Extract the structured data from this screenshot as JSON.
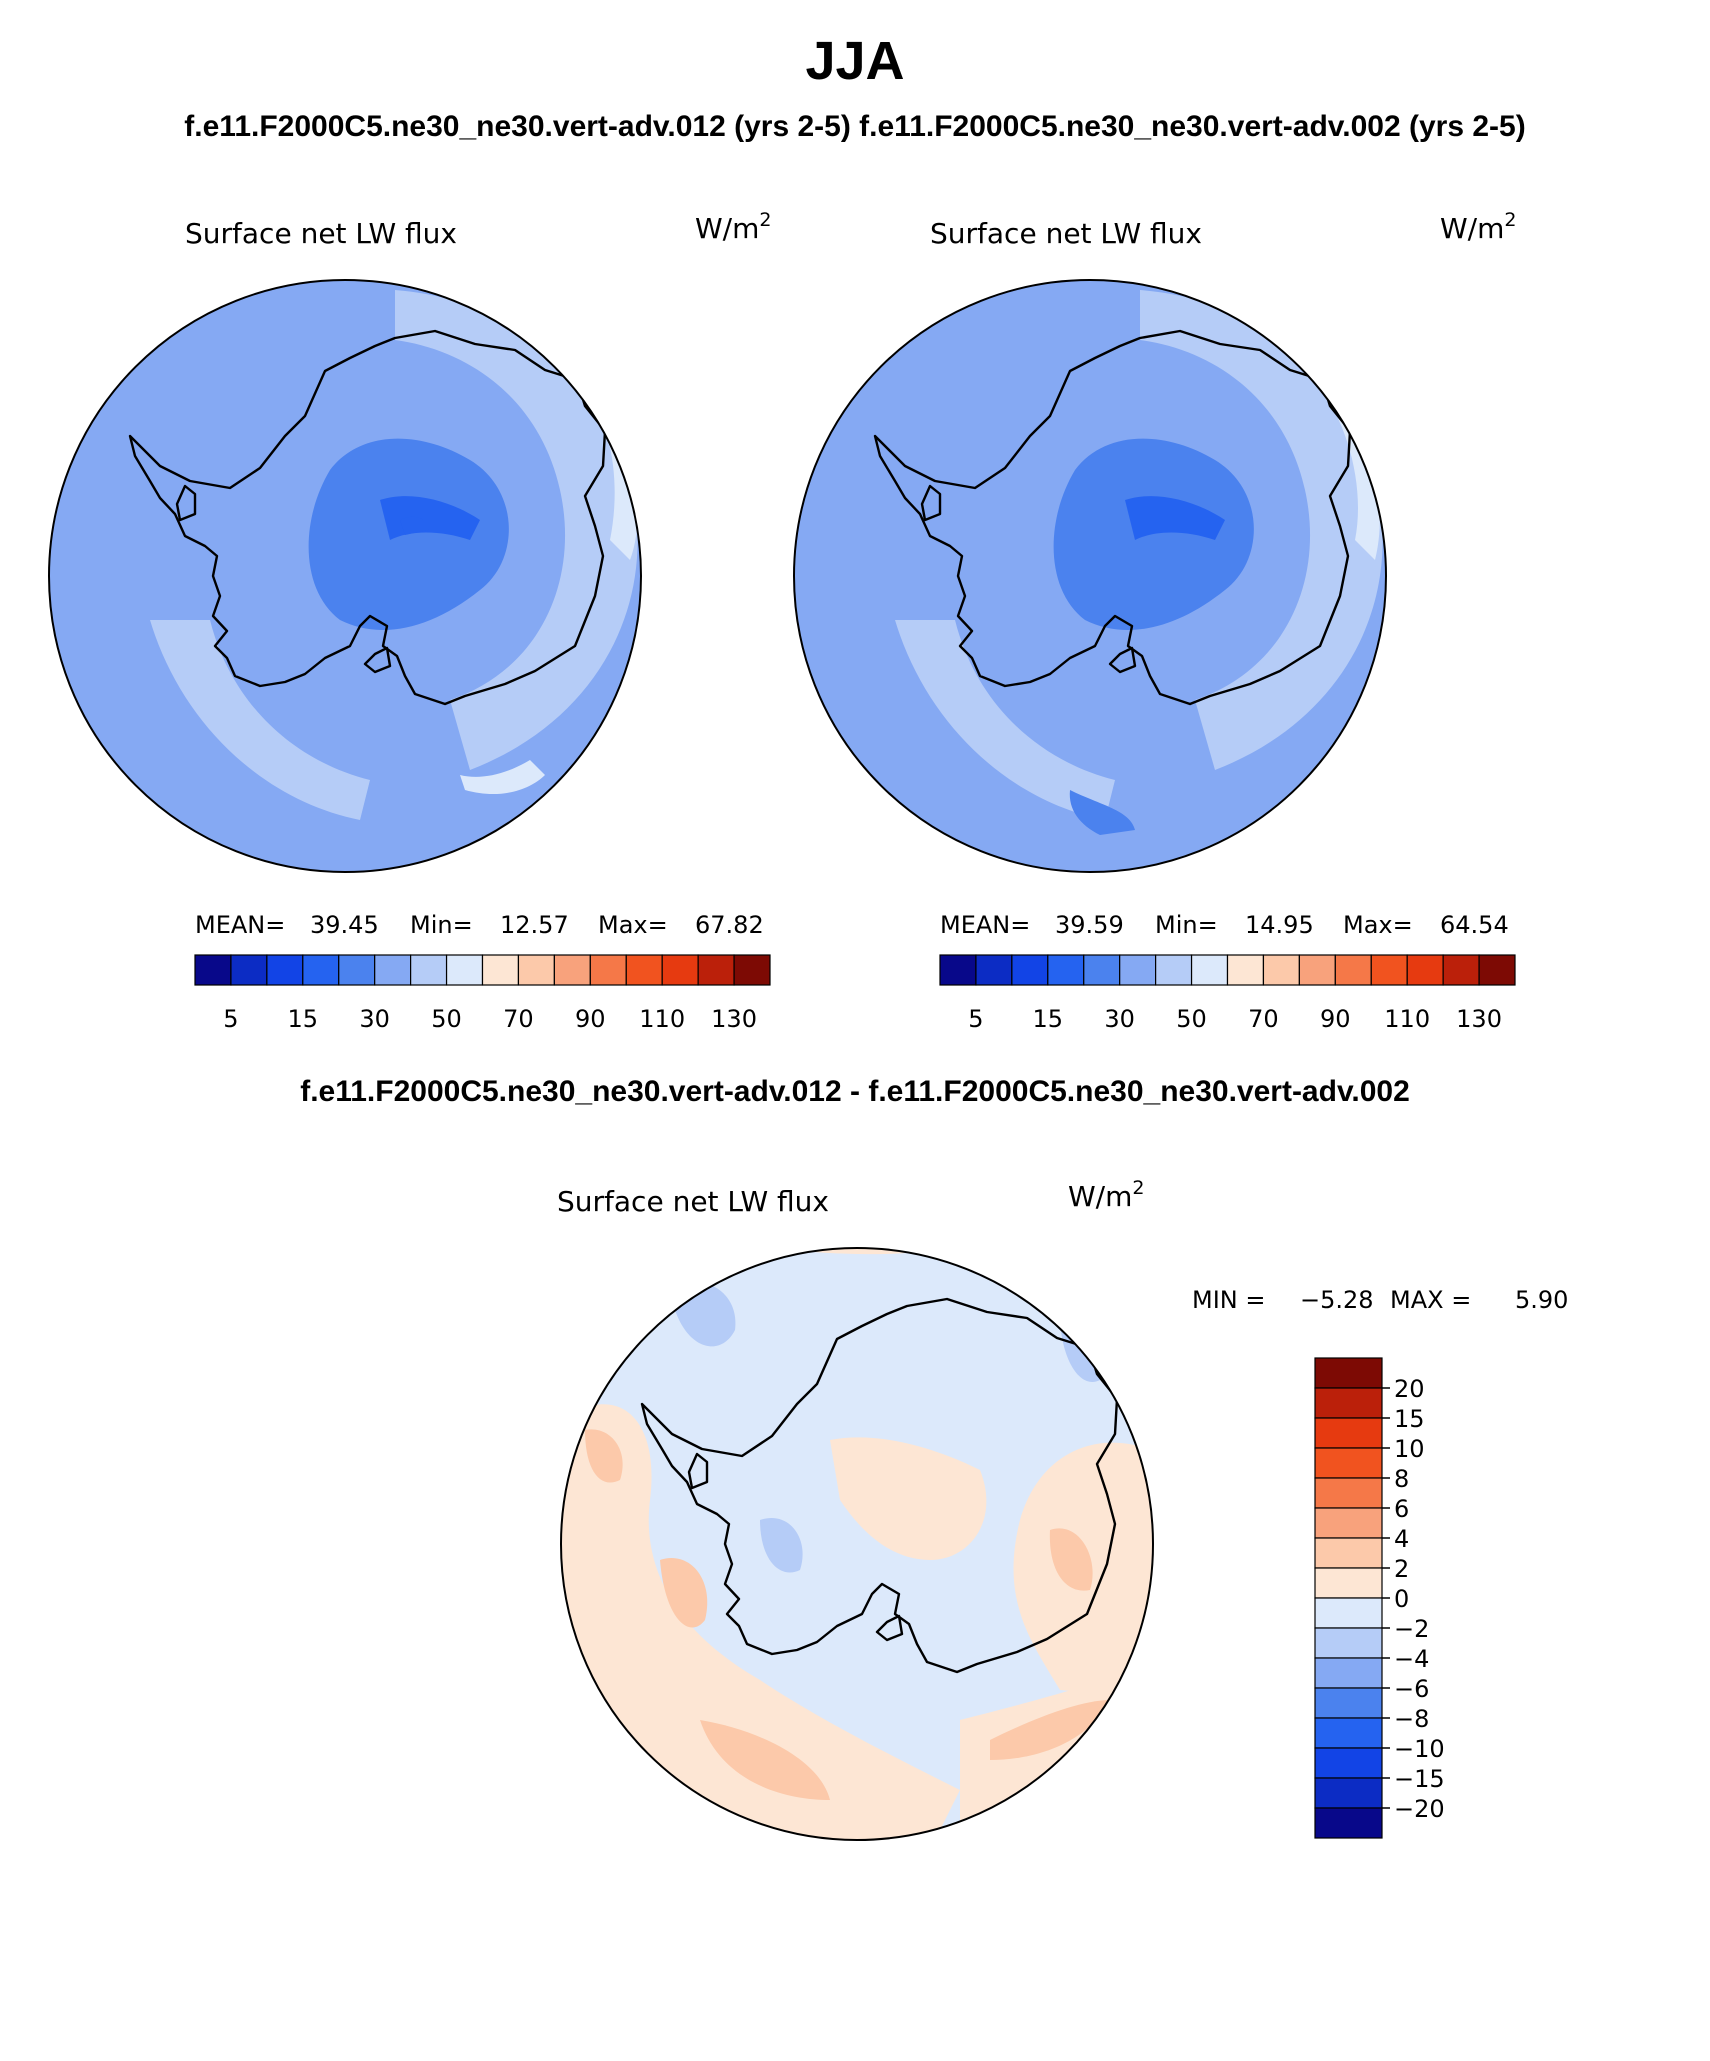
{
  "page": {
    "title": "JJA",
    "case_title_left": "f.e11.F2000C5.ne30_ne30.vert-adv.012 (yrs 2-5)",
    "case_title_right": "f.e11.F2000C5.ne30_ne30.vert-adv.002 (yrs 2-5)",
    "diff_title": "f.e11.F2000C5.ne30_ne30.vert-adv.012 - f.e11.F2000C5.ne30_ne30.vert-adv.002"
  },
  "panels": [
    {
      "id": "left",
      "variable": "Surface net LW flux",
      "units": "W/m",
      "units_exp": "2",
      "stats": {
        "mean_label": "MEAN=",
        "mean": "39.45",
        "min_label": "Min=",
        "min": "12.57",
        "max_label": "Max=",
        "max": "67.82"
      }
    },
    {
      "id": "right",
      "variable": "Surface net LW flux",
      "units": "W/m",
      "units_exp": "2",
      "stats": {
        "mean_label": "MEAN=",
        "mean": "39.59",
        "min_label": "Min=",
        "min": "14.95",
        "max_label": "Max=",
        "max": "64.54"
      }
    },
    {
      "id": "diff",
      "variable": "Surface net LW flux",
      "units": "W/m",
      "units_exp": "2",
      "stats": {
        "min_label": "MIN =",
        "min": "−5.28",
        "max_label": "MAX =",
        "max": "5.90"
      }
    }
  ],
  "colorbar_abs": {
    "colors": [
      "#08088a",
      "#0c2cc4",
      "#1244e6",
      "#2563f0",
      "#4b82ee",
      "#85a9f3",
      "#b5ccf7",
      "#dce9fb",
      "#fde6d4",
      "#fcc9aa",
      "#f8a27c",
      "#f57848",
      "#f1531f",
      "#e63a10",
      "#bb200a",
      "#7d0a04"
    ],
    "labels": [
      "5",
      "15",
      "30",
      "50",
      "70",
      "90",
      "110",
      "130"
    ]
  },
  "colorbar_diff": {
    "colors": [
      "#7d0a04",
      "#bb200a",
      "#e63a10",
      "#f1531f",
      "#f57848",
      "#f8a27c",
      "#fcc9aa",
      "#fde6d4",
      "#dce9fb",
      "#b5ccf7",
      "#85a9f3",
      "#4b82ee",
      "#2563f0",
      "#1244e6",
      "#0c2cc4",
      "#08088a"
    ],
    "labels": [
      "20",
      "15",
      "10",
      "8",
      "6",
      "4",
      "2",
      "0",
      "−2",
      "−4",
      "−6",
      "−8",
      "−10",
      "−15",
      "−20"
    ]
  },
  "field_colors": {
    "mid": "#85a9f3",
    "light": "#b5ccf7",
    "lighter": "#dce9fb",
    "dark": "#4b82ee",
    "darker": "#2563f0",
    "pos1": "#fde6d4",
    "pos2": "#fcc9aa",
    "pos3": "#f8a27c",
    "coast": "#000000"
  }
}
